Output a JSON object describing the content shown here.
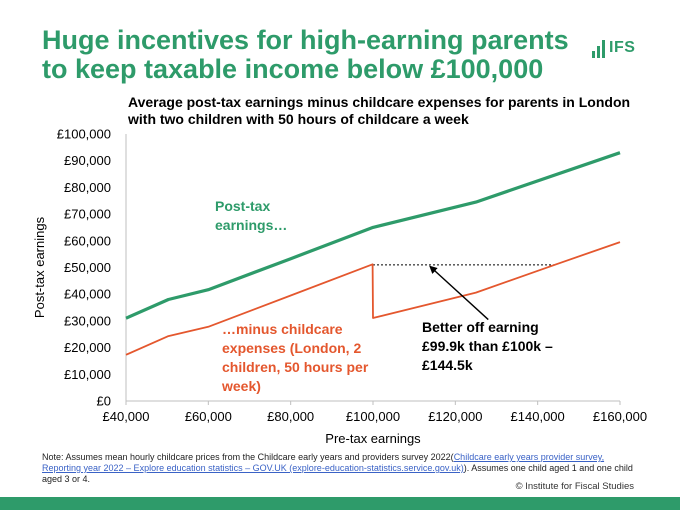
{
  "slide": {
    "title": "Huge incentives for high-earning parents to keep taxable income below £100,000",
    "logo_text": "IFS",
    "note_prefix": "Note: Assumes mean hourly childcare prices from the Childcare early years and providers survey 2022(",
    "note_link": "Childcare early years provider survey, Reporting year 2022 – Explore education statistics – GOV.UK (explore-education-statistics.service.gov.uk)",
    "note_suffix": "). Assumes one child aged 1 and one child aged 3 or 4.",
    "copyright": "© Institute for Fiscal Studies",
    "brand_color": "#2e9b6a"
  },
  "chart_data": {
    "type": "line",
    "title": "Average post-tax earnings minus childcare expenses for parents in London with two children with 50 hours of childcare a week",
    "xlabel": "Pre-tax earnings",
    "ylabel": "Post-tax earnings",
    "xlim": [
      40000,
      160000
    ],
    "ylim": [
      0,
      100000
    ],
    "x_ticks": [
      {
        "value": 40000,
        "label": "£40,000"
      },
      {
        "value": 60000,
        "label": "£60,000"
      },
      {
        "value": 80000,
        "label": "£80,000"
      },
      {
        "value": 100000,
        "label": "£100,000"
      },
      {
        "value": 120000,
        "label": "£120,000"
      },
      {
        "value": 140000,
        "label": "£140,000"
      },
      {
        "value": 160000,
        "label": "£160,000"
      }
    ],
    "y_ticks": [
      {
        "value": 0,
        "label": "£0"
      },
      {
        "value": 10000,
        "label": "£10,000"
      },
      {
        "value": 20000,
        "label": "£20,000"
      },
      {
        "value": 30000,
        "label": "£30,000"
      },
      {
        "value": 40000,
        "label": "£40,000"
      },
      {
        "value": 50000,
        "label": "£50,000"
      },
      {
        "value": 60000,
        "label": "£60,000"
      },
      {
        "value": 70000,
        "label": "£70,000"
      },
      {
        "value": 80000,
        "label": "£80,000"
      },
      {
        "value": 90000,
        "label": "£90,000"
      },
      {
        "value": 100000,
        "label": "£100,000"
      }
    ],
    "grid": false,
    "series": [
      {
        "color": "#2e9b6a",
        "x": [
          40000,
          50300,
          60000,
          80000,
          100000,
          125000,
          160000
        ],
        "y": [
          31000,
          38000,
          41700,
          53300,
          65000,
          74500,
          93000
        ]
      },
      {
        "color": "#e4572e",
        "x": [
          40000,
          50300,
          60000,
          80000,
          99900,
          100000,
          125000,
          144500,
          160000
        ],
        "y": [
          17300,
          24300,
          27800,
          39500,
          51200,
          31100,
          40600,
          51200,
          59500
        ]
      }
    ],
    "reference_line": {
      "x_start": 100000,
      "x_end": 144500,
      "y": 51000,
      "style": "dashed"
    },
    "annotations": {
      "green_line": "Post-tax earnings…",
      "red_line": "…minus childcare expenses (London, 2 children, 50 hours per week)",
      "gap": "Better off earning £99.9k than £100k – £144.5k",
      "arrow_target": {
        "x": 114000,
        "y": 50200
      },
      "arrow_origin": {
        "x": 128000,
        "y": 30500
      }
    }
  }
}
